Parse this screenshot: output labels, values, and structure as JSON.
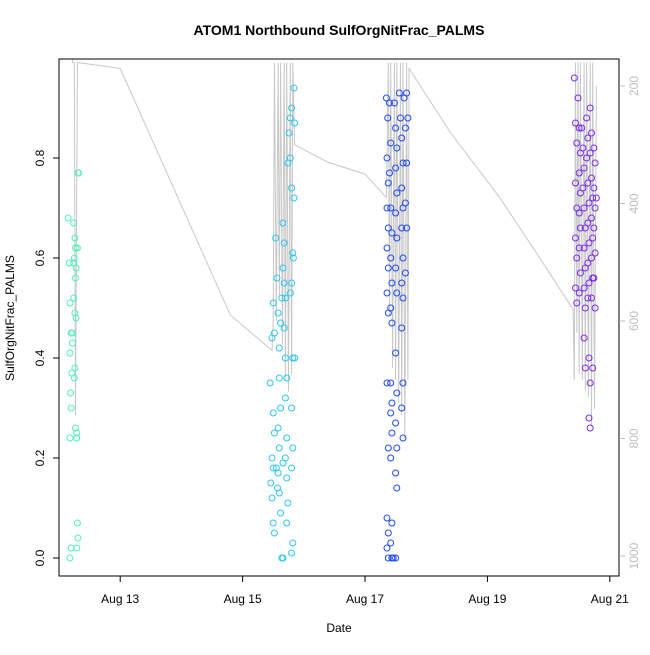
{
  "chart_data": {
    "type": "scatter",
    "title": "ATOM1 Northbound SulfOrgNitFrac_PALMS",
    "xlabel": "Date",
    "ylabel": "SulfOrgNitFrac_PALMS",
    "x_ticks": [
      "Aug 13",
      "Aug 15",
      "Aug 17",
      "Aug 19",
      "Aug 21"
    ],
    "y_ticks": [
      "0.0",
      "0.2",
      "0.4",
      "0.6",
      "0.8"
    ],
    "y2_ticks": [
      "200",
      "400",
      "600",
      "800",
      "1000"
    ],
    "ylim": [
      0,
      1.0
    ],
    "y2lim": [
      1020,
      170
    ],
    "xlim_days": [
      12.0,
      21.15
    ],
    "grid": false,
    "colors": {
      "c1": "#4ef2b9",
      "c2": "#2fc6f0",
      "c3": "#1f49f2",
      "c4": "#7a2cf0",
      "secondary": "#c8c8c8"
    },
    "series": [
      {
        "color_key": "c1",
        "values": [
          [
            12.15,
            0.68
          ],
          [
            12.17,
            0.59
          ],
          [
            12.18,
            0.51
          ],
          [
            12.2,
            0.45
          ],
          [
            12.22,
            0.43
          ],
          [
            12.18,
            0.41
          ],
          [
            12.21,
            0.37
          ],
          [
            12.19,
            0.33
          ],
          [
            12.2,
            0.3
          ],
          [
            12.18,
            0.24
          ],
          [
            12.24,
            0.67
          ],
          [
            12.26,
            0.64
          ],
          [
            12.27,
            0.62
          ],
          [
            12.25,
            0.6
          ],
          [
            12.3,
            0.62
          ],
          [
            12.28,
            0.58
          ],
          [
            12.27,
            0.56
          ],
          [
            12.24,
            0.52
          ],
          [
            12.26,
            0.49
          ],
          [
            12.28,
            0.48
          ],
          [
            12.26,
            0.38
          ],
          [
            12.25,
            0.36
          ],
          [
            12.27,
            0.26
          ],
          [
            12.29,
            0.25
          ],
          [
            12.31,
            0.77
          ],
          [
            12.32,
            0.77
          ],
          [
            12.3,
            0.07
          ],
          [
            12.31,
            0.04
          ],
          [
            12.29,
            0.02
          ],
          [
            12.2,
            0.02
          ],
          [
            12.18,
            0.0
          ],
          [
            12.22,
            0.45
          ],
          [
            12.24,
            0.59
          ],
          [
            12.29,
            0.24
          ]
        ]
      },
      {
        "color_key": "c2",
        "values": [
          [
            15.45,
            0.35
          ],
          [
            15.48,
            0.44
          ],
          [
            15.5,
            0.51
          ],
          [
            15.52,
            0.45
          ],
          [
            15.5,
            0.29
          ],
          [
            15.52,
            0.25
          ],
          [
            15.48,
            0.2
          ],
          [
            15.5,
            0.18
          ],
          [
            15.46,
            0.15
          ],
          [
            15.48,
            0.12
          ],
          [
            15.5,
            0.07
          ],
          [
            15.52,
            0.05
          ],
          [
            15.54,
            0.64
          ],
          [
            15.56,
            0.56
          ],
          [
            15.58,
            0.49
          ],
          [
            15.6,
            0.42
          ],
          [
            15.6,
            0.36
          ],
          [
            15.62,
            0.3
          ],
          [
            15.58,
            0.26
          ],
          [
            15.6,
            0.22
          ],
          [
            15.58,
            0.17
          ],
          [
            15.6,
            0.13
          ],
          [
            15.62,
            0.09
          ],
          [
            15.64,
            0.0
          ],
          [
            15.66,
            0.0
          ],
          [
            15.66,
            0.67
          ],
          [
            15.68,
            0.63
          ],
          [
            15.66,
            0.58
          ],
          [
            15.68,
            0.55
          ],
          [
            15.7,
            0.52
          ],
          [
            15.68,
            0.46
          ],
          [
            15.7,
            0.4
          ],
          [
            15.72,
            0.36
          ],
          [
            15.7,
            0.32
          ],
          [
            15.72,
            0.24
          ],
          [
            15.7,
            0.2
          ],
          [
            15.72,
            0.16
          ],
          [
            15.74,
            0.11
          ],
          [
            15.72,
            0.07
          ],
          [
            15.74,
            0.79
          ],
          [
            15.76,
            0.85
          ],
          [
            15.78,
            0.88
          ],
          [
            15.8,
            0.9
          ],
          [
            15.78,
            0.8
          ],
          [
            15.8,
            0.74
          ],
          [
            15.82,
            0.61
          ],
          [
            15.8,
            0.55
          ],
          [
            15.78,
            0.53
          ],
          [
            15.82,
            0.4
          ],
          [
            15.8,
            0.3
          ],
          [
            15.82,
            0.22
          ],
          [
            15.8,
            0.18
          ],
          [
            15.82,
            0.03
          ],
          [
            15.8,
            0.01
          ],
          [
            15.84,
            0.94
          ],
          [
            15.85,
            0.87
          ],
          [
            15.84,
            0.72
          ],
          [
            15.83,
            0.6
          ],
          [
            15.85,
            0.4
          ],
          [
            15.62,
            0.47
          ],
          [
            15.64,
            0.52
          ],
          [
            15.55,
            0.18
          ],
          [
            15.57,
            0.14
          ],
          [
            15.66,
            0.19
          ]
        ]
      },
      {
        "color_key": "c3",
        "values": [
          [
            17.35,
            0.92
          ],
          [
            17.37,
            0.88
          ],
          [
            17.36,
            0.8
          ],
          [
            17.38,
            0.75
          ],
          [
            17.36,
            0.7
          ],
          [
            17.38,
            0.66
          ],
          [
            17.36,
            0.62
          ],
          [
            17.38,
            0.58
          ],
          [
            17.36,
            0.53
          ],
          [
            17.38,
            0.49
          ],
          [
            17.36,
            0.35
          ],
          [
            17.38,
            0.22
          ],
          [
            17.36,
            0.08
          ],
          [
            17.38,
            0.05
          ],
          [
            17.36,
            0.02
          ],
          [
            17.38,
            0.0
          ],
          [
            17.4,
            0.91
          ],
          [
            17.42,
            0.83
          ],
          [
            17.4,
            0.77
          ],
          [
            17.42,
            0.7
          ],
          [
            17.44,
            0.65
          ],
          [
            17.42,
            0.6
          ],
          [
            17.44,
            0.55
          ],
          [
            17.42,
            0.5
          ],
          [
            17.44,
            0.47
          ],
          [
            17.42,
            0.35
          ],
          [
            17.44,
            0.31
          ],
          [
            17.42,
            0.29
          ],
          [
            17.44,
            0.25
          ],
          [
            17.42,
            0.2
          ],
          [
            17.44,
            0.07
          ],
          [
            17.42,
            0.03
          ],
          [
            17.44,
            0.0
          ],
          [
            17.46,
            0.0
          ],
          [
            17.48,
            0.91
          ],
          [
            17.5,
            0.86
          ],
          [
            17.52,
            0.82
          ],
          [
            17.5,
            0.78
          ],
          [
            17.52,
            0.73
          ],
          [
            17.5,
            0.69
          ],
          [
            17.52,
            0.64
          ],
          [
            17.5,
            0.58
          ],
          [
            17.52,
            0.53
          ],
          [
            17.5,
            0.41
          ],
          [
            17.52,
            0.33
          ],
          [
            17.5,
            0.27
          ],
          [
            17.52,
            0.22
          ],
          [
            17.5,
            0.17
          ],
          [
            17.52,
            0.14
          ],
          [
            17.5,
            0.0
          ],
          [
            17.56,
            0.93
          ],
          [
            17.58,
            0.88
          ],
          [
            17.6,
            0.84
          ],
          [
            17.62,
            0.79
          ],
          [
            17.6,
            0.74
          ],
          [
            17.62,
            0.7
          ],
          [
            17.6,
            0.66
          ],
          [
            17.62,
            0.6
          ],
          [
            17.6,
            0.55
          ],
          [
            17.62,
            0.52
          ],
          [
            17.6,
            0.46
          ],
          [
            17.62,
            0.35
          ],
          [
            17.6,
            0.3
          ],
          [
            17.62,
            0.24
          ],
          [
            17.64,
            0.92
          ],
          [
            17.66,
            0.86
          ],
          [
            17.68,
            0.79
          ],
          [
            17.66,
            0.71
          ],
          [
            17.68,
            0.66
          ],
          [
            17.66,
            0.57
          ],
          [
            17.68,
            0.93
          ],
          [
            17.7,
            0.88
          ]
        ]
      },
      {
        "color_key": "c4",
        "values": [
          [
            20.42,
            0.96
          ],
          [
            20.44,
            0.87
          ],
          [
            20.46,
            0.83
          ],
          [
            20.44,
            0.75
          ],
          [
            20.46,
            0.7
          ],
          [
            20.44,
            0.64
          ],
          [
            20.46,
            0.6
          ],
          [
            20.44,
            0.54
          ],
          [
            20.46,
            0.51
          ],
          [
            20.48,
            0.92
          ],
          [
            20.5,
            0.86
          ],
          [
            20.52,
            0.81
          ],
          [
            20.5,
            0.77
          ],
          [
            20.52,
            0.73
          ],
          [
            20.5,
            0.69
          ],
          [
            20.52,
            0.66
          ],
          [
            20.5,
            0.62
          ],
          [
            20.52,
            0.57
          ],
          [
            20.5,
            0.53
          ],
          [
            20.54,
            0.86
          ],
          [
            20.56,
            0.82
          ],
          [
            20.58,
            0.78
          ],
          [
            20.56,
            0.74
          ],
          [
            20.58,
            0.7
          ],
          [
            20.6,
            0.66
          ],
          [
            20.58,
            0.62
          ],
          [
            20.6,
            0.58
          ],
          [
            20.58,
            0.54
          ],
          [
            20.6,
            0.5
          ],
          [
            20.58,
            0.44
          ],
          [
            20.6,
            0.38
          ],
          [
            20.62,
            0.88
          ],
          [
            20.64,
            0.84
          ],
          [
            20.62,
            0.8
          ],
          [
            20.64,
            0.75
          ],
          [
            20.66,
            0.71
          ],
          [
            20.64,
            0.67
          ],
          [
            20.66,
            0.63
          ],
          [
            20.64,
            0.59
          ],
          [
            20.66,
            0.55
          ],
          [
            20.64,
            0.52
          ],
          [
            20.66,
            0.4
          ],
          [
            20.68,
            0.9
          ],
          [
            20.7,
            0.85
          ],
          [
            20.68,
            0.81
          ],
          [
            20.7,
            0.76
          ],
          [
            20.72,
            0.72
          ],
          [
            20.7,
            0.68
          ],
          [
            20.72,
            0.64
          ],
          [
            20.7,
            0.6
          ],
          [
            20.72,
            0.56
          ],
          [
            20.7,
            0.52
          ],
          [
            20.72,
            0.38
          ],
          [
            20.68,
            0.35
          ],
          [
            20.66,
            0.28
          ],
          [
            20.68,
            0.26
          ],
          [
            20.74,
            0.82
          ],
          [
            20.76,
            0.79
          ],
          [
            20.74,
            0.74
          ],
          [
            20.76,
            0.7
          ],
          [
            20.74,
            0.66
          ],
          [
            20.76,
            0.61
          ],
          [
            20.74,
            0.56
          ],
          [
            20.76,
            0.5
          ],
          [
            20.78,
            0.72
          ]
        ]
      }
    ],
    "secondary_series": {
      "color_key": "secondary",
      "values": [
        [
          12.2,
          0
        ],
        [
          12.22,
          160
        ],
        [
          12.25,
          160
        ],
        [
          12.27,
          760
        ],
        [
          12.3,
          160
        ],
        [
          13.0,
          170
        ],
        [
          13.9,
          380
        ],
        [
          14.8,
          590
        ],
        [
          15.48,
          650
        ],
        [
          15.5,
          600
        ],
        [
          15.52,
          160
        ],
        [
          15.55,
          600
        ],
        [
          15.58,
          160
        ],
        [
          15.6,
          560
        ],
        [
          15.62,
          160
        ],
        [
          15.65,
          640
        ],
        [
          15.68,
          160
        ],
        [
          15.7,
          700
        ],
        [
          15.72,
          160
        ],
        [
          15.75,
          720
        ],
        [
          15.78,
          160
        ],
        [
          15.8,
          690
        ],
        [
          15.82,
          160
        ],
        [
          15.85,
          300
        ],
        [
          16.4,
          330
        ],
        [
          17.0,
          350
        ],
        [
          17.35,
          390
        ],
        [
          17.38,
          160
        ],
        [
          17.4,
          590
        ],
        [
          17.42,
          160
        ],
        [
          17.45,
          680
        ],
        [
          17.48,
          160
        ],
        [
          17.5,
          700
        ],
        [
          17.52,
          160
        ],
        [
          17.55,
          740
        ],
        [
          17.58,
          160
        ],
        [
          17.6,
          760
        ],
        [
          17.62,
          160
        ],
        [
          17.65,
          800
        ],
        [
          17.68,
          160
        ],
        [
          17.7,
          700
        ],
        [
          17.72,
          170
        ],
        [
          18.4,
          280
        ],
        [
          19.2,
          390
        ],
        [
          19.9,
          500
        ],
        [
          20.4,
          580
        ],
        [
          20.42,
          700
        ],
        [
          20.44,
          160
        ],
        [
          20.46,
          620
        ],
        [
          20.48,
          160
        ],
        [
          20.5,
          690
        ],
        [
          20.52,
          160
        ],
        [
          20.55,
          700
        ],
        [
          20.58,
          160
        ],
        [
          20.6,
          720
        ],
        [
          20.62,
          160
        ],
        [
          20.65,
          730
        ],
        [
          20.68,
          160
        ],
        [
          20.7,
          780
        ],
        [
          20.72,
          160
        ],
        [
          20.75,
          750
        ],
        [
          20.78,
          200
        ]
      ]
    }
  }
}
